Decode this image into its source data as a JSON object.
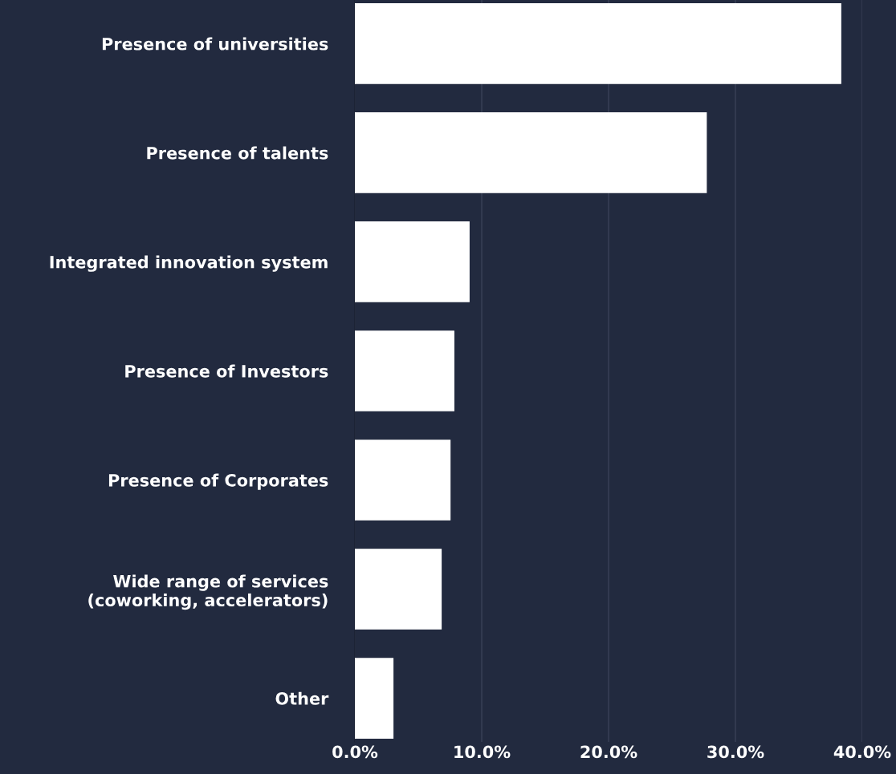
{
  "chart_data": {
    "type": "bar",
    "orientation": "horizontal",
    "categories": [
      "Presence of universities",
      "Presence of talents",
      "Integrated innovation system",
      "Presence of Investors",
      "Presence of Corporates",
      "Wide range of services\n(coworking, accelerators)",
      "Other"
    ],
    "values": [
      38.3,
      27.7,
      9.0,
      7.8,
      7.5,
      6.8,
      3.0
    ],
    "color": "#ffffff",
    "xlim": [
      0,
      40
    ],
    "xticks": [
      {
        "value": 0,
        "label": "0.0%"
      },
      {
        "value": 10,
        "label": "10.0%"
      },
      {
        "value": 20,
        "label": "20.0%"
      },
      {
        "value": 30,
        "label": "30.0%"
      },
      {
        "value": 40,
        "label": "40.0%"
      }
    ],
    "grid": "x"
  }
}
